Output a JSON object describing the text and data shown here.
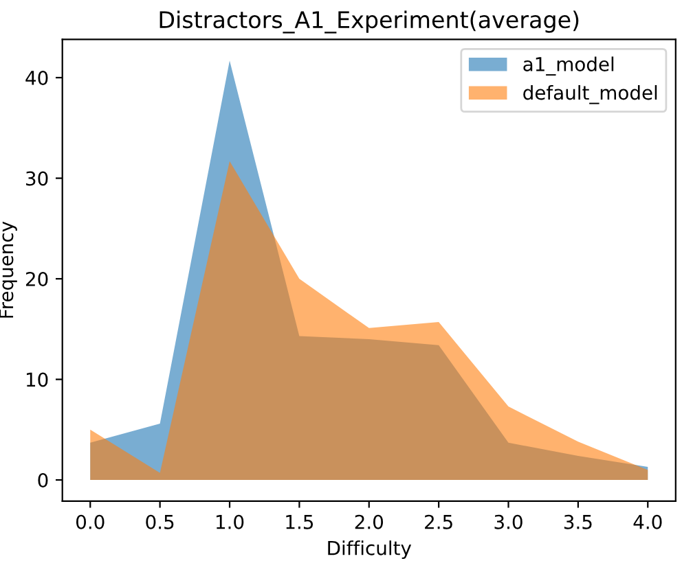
{
  "chart_data": {
    "type": "area",
    "title": "Distractors_A1_Experiment(average)",
    "xlabel": "Difficulty",
    "ylabel": "Frequency",
    "x": [
      0.0,
      0.5,
      1.0,
      1.5,
      2.0,
      2.5,
      3.0,
      3.5,
      4.0
    ],
    "series": [
      {
        "name": "a1_model",
        "color": "#1f77b4",
        "values": [
          3.7,
          5.6,
          41.7,
          14.3,
          14.0,
          13.4,
          3.7,
          2.4,
          1.3
        ]
      },
      {
        "name": "default_model",
        "color": "#ff7f0e",
        "values": [
          5.0,
          0.7,
          31.7,
          20.0,
          15.1,
          15.7,
          7.3,
          3.8,
          1.0
        ]
      }
    ],
    "xlim": [
      -0.2,
      4.2
    ],
    "ylim": [
      -2.1,
      43.8
    ],
    "xticks": [
      {
        "value": 0.0,
        "label": "0.0"
      },
      {
        "value": 0.5,
        "label": "0.5"
      },
      {
        "value": 1.0,
        "label": "1.0"
      },
      {
        "value": 1.5,
        "label": "1.5"
      },
      {
        "value": 2.0,
        "label": "2.0"
      },
      {
        "value": 2.5,
        "label": "2.5"
      },
      {
        "value": 3.0,
        "label": "3.0"
      },
      {
        "value": 3.5,
        "label": "3.5"
      },
      {
        "value": 4.0,
        "label": "4.0"
      }
    ],
    "yticks": [
      0,
      10,
      20,
      30,
      40
    ],
    "legend": "top right",
    "grid": false
  }
}
